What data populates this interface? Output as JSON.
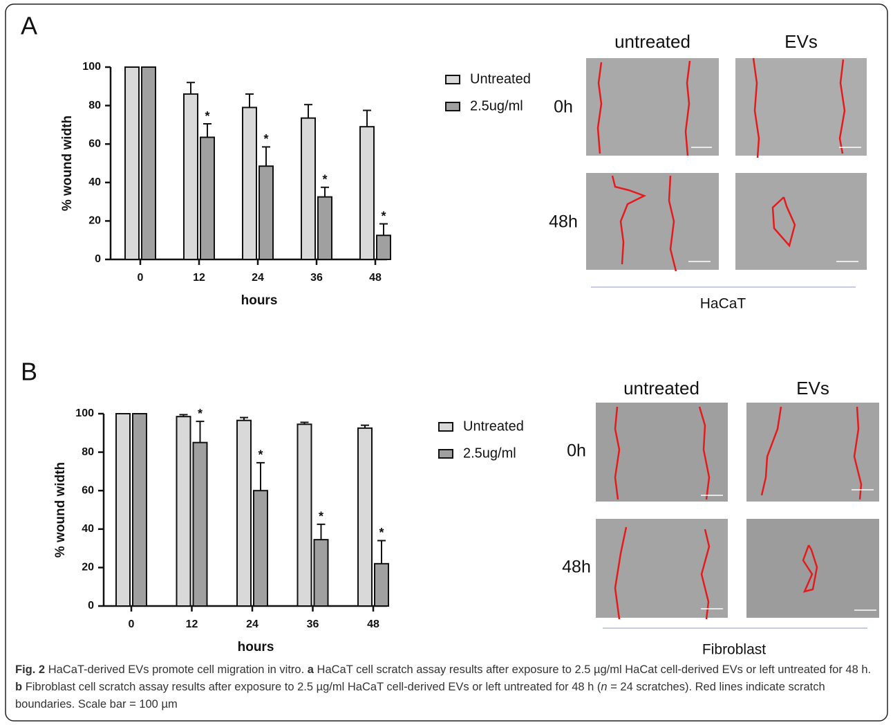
{
  "chart_data": [
    {
      "type": "bar",
      "panel": "A",
      "xlabel": "hours",
      "ylabel": "% wound width",
      "categories": [
        "0",
        "12",
        "24",
        "36",
        "48"
      ],
      "series": [
        {
          "name": "Untreated",
          "color": "#d9d9d9",
          "values": [
            100,
            86,
            79,
            73.5,
            69
          ],
          "errors": [
            0,
            6,
            7,
            7,
            8.5
          ]
        },
        {
          "name": "2.5ug/ml",
          "color": "#a0a0a0",
          "values": [
            100,
            63.5,
            48.5,
            32.5,
            12.5
          ],
          "errors": [
            0,
            7,
            10,
            5,
            6
          ],
          "significance": [
            null,
            "*",
            "*",
            "*",
            "*"
          ]
        }
      ],
      "ylim": [
        0,
        100
      ],
      "yticks": [
        0,
        20,
        40,
        60,
        80,
        100
      ],
      "images": {
        "columns": [
          "untreated",
          "EVs"
        ],
        "rows": [
          "0h",
          "48h"
        ],
        "cell_type": "HaCaT"
      }
    },
    {
      "type": "bar",
      "panel": "B",
      "xlabel": "hours",
      "ylabel": "% wound width",
      "categories": [
        "0",
        "12",
        "24",
        "36",
        "48"
      ],
      "series": [
        {
          "name": "Untreated",
          "color": "#d9d9d9",
          "values": [
            100,
            98.5,
            96.5,
            94.5,
            92.5
          ],
          "errors": [
            0,
            1,
            1.5,
            1,
            1.5
          ]
        },
        {
          "name": "2.5ug/ml",
          "color": "#a0a0a0",
          "values": [
            100,
            85,
            60,
            34.5,
            22
          ],
          "errors": [
            0,
            11,
            14.5,
            8,
            12
          ],
          "significance": [
            null,
            "*",
            "*",
            "*",
            "*"
          ]
        }
      ],
      "ylim": [
        0,
        100
      ],
      "yticks": [
        0,
        20,
        40,
        60,
        80,
        100
      ],
      "images": {
        "columns": [
          "untreated",
          "EVs"
        ],
        "rows": [
          "0h",
          "48h"
        ],
        "cell_type": "Fibroblast"
      }
    }
  ],
  "caption": {
    "label": "Fig. 2",
    "title": "HaCaT-derived EVs promote cell migration in vitro.",
    "a_label": "a",
    "a_text": "HaCaT cell scratch assay results after exposure to 2.5 µg/ml HaCat cell-derived EVs or left untreated for 48 h.",
    "b_label": "b",
    "b_text": "Fibroblast cell scratch assay results after exposure to 2.5 µg/ml HaCaT cell-derived EVs or left untreated for 48 h (",
    "n": "n",
    "rest": "= 24 scratches). Red lines indicate scratch boundaries. Scale bar = 100 µm"
  }
}
